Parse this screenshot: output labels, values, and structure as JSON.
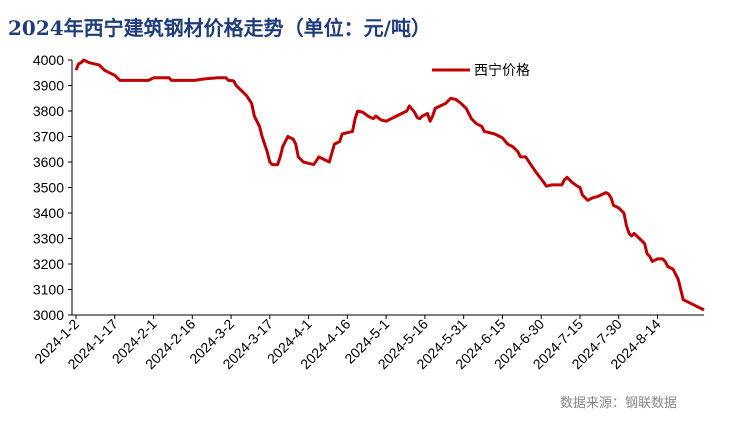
{
  "title": "2024年西宁建筑钢材价格走势（单位：元/吨）",
  "source": "数据来源：钢联数据",
  "chart_data": {
    "type": "line",
    "title": "2024年西宁建筑钢材价格走势（单位：元/吨）",
    "xlabel": "",
    "ylabel": "",
    "ylim": [
      3000,
      4000
    ],
    "yticks": [
      3000,
      3100,
      3200,
      3300,
      3400,
      3500,
      3600,
      3700,
      3800,
      3900,
      4000
    ],
    "xticks": [
      "2024-1-2",
      "2024-1-17",
      "2024-2-1",
      "2024-2-16",
      "2024-3-2",
      "2024-3-17",
      "2024-4-1",
      "2024-4-16",
      "2024-5-1",
      "2024-5-16",
      "2024-5-31",
      "2024-6-15",
      "2024-6-30",
      "2024-7-15",
      "2024-7-30",
      "2024-8-14"
    ],
    "x_start": "2024-1-2",
    "x_end": "2024-8-23",
    "legend": "top-center",
    "grid": false,
    "color": "#c00000",
    "series": [
      {
        "name": "西宁价格",
        "points": [
          [
            "2024-1-2",
            3960
          ],
          [
            "2024-1-3",
            3985
          ],
          [
            "2024-1-4",
            3990
          ],
          [
            "2024-1-5",
            4000
          ],
          [
            "2024-1-7",
            3990
          ],
          [
            "2024-1-9",
            3985
          ],
          [
            "2024-1-11",
            3980
          ],
          [
            "2024-1-13",
            3960
          ],
          [
            "2024-1-15",
            3950
          ],
          [
            "2024-1-17",
            3940
          ],
          [
            "2024-1-19",
            3920
          ],
          [
            "2024-1-21",
            3920
          ],
          [
            "2024-1-24",
            3920
          ],
          [
            "2024-1-27",
            3920
          ],
          [
            "2024-1-30",
            3920
          ],
          [
            "2024-2-1",
            3930
          ],
          [
            "2024-2-4",
            3930
          ],
          [
            "2024-2-7",
            3930
          ],
          [
            "2024-2-8",
            3920
          ],
          [
            "2024-2-11",
            3920
          ],
          [
            "2024-2-14",
            3920
          ],
          [
            "2024-2-17",
            3920
          ],
          [
            "2024-2-20",
            3925
          ],
          [
            "2024-2-23",
            3928
          ],
          [
            "2024-2-26",
            3930
          ],
          [
            "2024-2-29",
            3930
          ],
          [
            "2024-3-1",
            3920
          ],
          [
            "2024-3-3",
            3918
          ],
          [
            "2024-3-4",
            3900
          ],
          [
            "2024-3-6",
            3880
          ],
          [
            "2024-3-8",
            3860
          ],
          [
            "2024-3-10",
            3830
          ],
          [
            "2024-3-11",
            3780
          ],
          [
            "2024-3-13",
            3740
          ],
          [
            "2024-3-14",
            3700
          ],
          [
            "2024-3-16",
            3640
          ],
          [
            "2024-3-17",
            3600
          ],
          [
            "2024-3-18",
            3590
          ],
          [
            "2024-3-20",
            3590
          ],
          [
            "2024-3-21",
            3620
          ],
          [
            "2024-3-22",
            3660
          ],
          [
            "2024-3-24",
            3700
          ],
          [
            "2024-3-26",
            3690
          ],
          [
            "2024-3-27",
            3670
          ],
          [
            "2024-3-28",
            3620
          ],
          [
            "2024-3-30",
            3600
          ],
          [
            "2024-4-1",
            3595
          ],
          [
            "2024-4-3",
            3590
          ],
          [
            "2024-4-5",
            3620
          ],
          [
            "2024-4-7",
            3610
          ],
          [
            "2024-4-9",
            3600
          ],
          [
            "2024-4-11",
            3670
          ],
          [
            "2024-4-13",
            3680
          ],
          [
            "2024-4-14",
            3710
          ],
          [
            "2024-4-16",
            3715
          ],
          [
            "2024-4-18",
            3720
          ],
          [
            "2024-4-19",
            3770
          ],
          [
            "2024-4-20",
            3800
          ],
          [
            "2024-4-22",
            3795
          ],
          [
            "2024-4-24",
            3780
          ],
          [
            "2024-4-26",
            3770
          ],
          [
            "2024-4-27",
            3780
          ],
          [
            "2024-4-29",
            3765
          ],
          [
            "2024-5-1",
            3760
          ],
          [
            "2024-5-3",
            3770
          ],
          [
            "2024-5-5",
            3780
          ],
          [
            "2024-5-7",
            3790
          ],
          [
            "2024-5-9",
            3800
          ],
          [
            "2024-5-10",
            3820
          ],
          [
            "2024-5-12",
            3795
          ],
          [
            "2024-5-13",
            3775
          ],
          [
            "2024-5-14",
            3770
          ],
          [
            "2024-5-15",
            3780
          ],
          [
            "2024-5-17",
            3790
          ],
          [
            "2024-5-18",
            3760
          ],
          [
            "2024-5-19",
            3780
          ],
          [
            "2024-5-20",
            3810
          ],
          [
            "2024-5-22",
            3820
          ],
          [
            "2024-5-24",
            3830
          ],
          [
            "2024-5-26",
            3850
          ],
          [
            "2024-5-28",
            3845
          ],
          [
            "2024-5-30",
            3830
          ],
          [
            "2024-6-1",
            3810
          ],
          [
            "2024-6-3",
            3770
          ],
          [
            "2024-6-5",
            3750
          ],
          [
            "2024-6-7",
            3740
          ],
          [
            "2024-6-8",
            3720
          ],
          [
            "2024-6-10",
            3715
          ],
          [
            "2024-6-12",
            3710
          ],
          [
            "2024-6-14",
            3700
          ],
          [
            "2024-6-15",
            3695
          ],
          [
            "2024-6-17",
            3670
          ],
          [
            "2024-6-19",
            3660
          ],
          [
            "2024-6-21",
            3640
          ],
          [
            "2024-6-22",
            3620
          ],
          [
            "2024-6-24",
            3620
          ],
          [
            "2024-6-26",
            3590
          ],
          [
            "2024-6-28",
            3560
          ],
          [
            "2024-7-1",
            3520
          ],
          [
            "2024-7-2",
            3505
          ],
          [
            "2024-7-4",
            3510
          ],
          [
            "2024-7-6",
            3510
          ],
          [
            "2024-7-8",
            3510
          ],
          [
            "2024-7-9",
            3530
          ],
          [
            "2024-7-10",
            3540
          ],
          [
            "2024-7-12",
            3520
          ],
          [
            "2024-7-14",
            3505
          ],
          [
            "2024-7-15",
            3500
          ],
          [
            "2024-7-16",
            3470
          ],
          [
            "2024-7-17",
            3460
          ],
          [
            "2024-7-18",
            3450
          ],
          [
            "2024-7-20",
            3460
          ],
          [
            "2024-7-22",
            3465
          ],
          [
            "2024-7-24",
            3475
          ],
          [
            "2024-7-25",
            3480
          ],
          [
            "2024-7-26",
            3475
          ],
          [
            "2024-7-27",
            3460
          ],
          [
            "2024-7-28",
            3430
          ],
          [
            "2024-7-30",
            3420
          ],
          [
            "2024-8-1",
            3400
          ],
          [
            "2024-8-2",
            3350
          ],
          [
            "2024-8-3",
            3320
          ],
          [
            "2024-8-4",
            3310
          ],
          [
            "2024-8-5",
            3320
          ],
          [
            "2024-8-7",
            3300
          ],
          [
            "2024-8-9",
            3280
          ],
          [
            "2024-8-10",
            3240
          ],
          [
            "2024-8-11",
            3230
          ],
          [
            "2024-8-12",
            3210
          ],
          [
            "2024-8-13",
            3215
          ],
          [
            "2024-8-14",
            3220
          ],
          [
            "2024-8-16",
            3220
          ],
          [
            "2024-8-17",
            3210
          ],
          [
            "2024-8-18",
            3190
          ],
          [
            "2024-8-20",
            3180
          ],
          [
            "2024-8-21",
            3160
          ],
          [
            "2024-8-22",
            3140
          ],
          [
            "2024-8-23",
            3100
          ],
          [
            "2024-8-24",
            3060
          ],
          [
            "2024-8-26",
            3050
          ],
          [
            "2024-8-28",
            3040
          ],
          [
            "2024-8-30",
            3030
          ],
          [
            "2024-9-1",
            3020
          ]
        ]
      }
    ]
  }
}
